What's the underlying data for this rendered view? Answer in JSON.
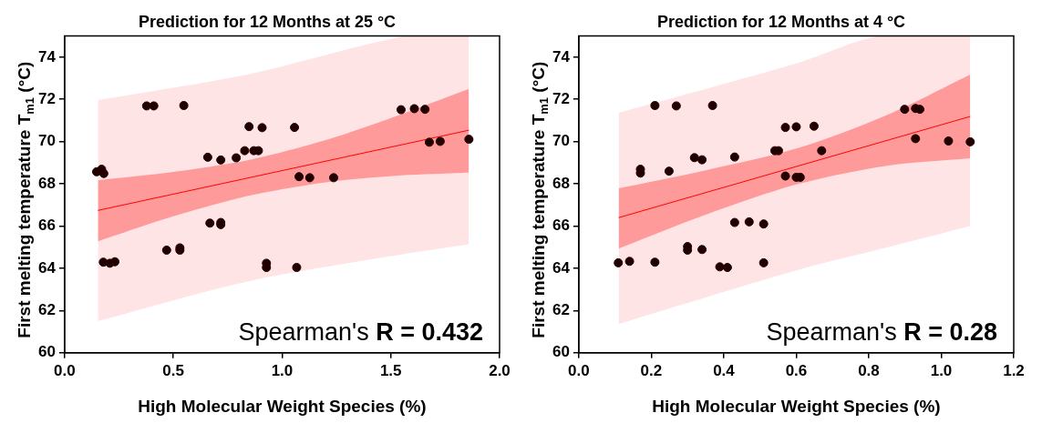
{
  "chart_data": [
    {
      "type": "scatter",
      "title": "Prediction for 12 Months at 25 °C",
      "xlabel": "High Molecular Weight Species (%)",
      "ylabel": "First melting temperature T$_{m1}$ (°C)",
      "xlim": [
        0,
        2
      ],
      "xticks": [
        {
          "value": 0,
          "label": "0.0"
        },
        {
          "value": 0.5,
          "label": "0.5"
        },
        {
          "value": 1,
          "label": "1.0"
        },
        {
          "value": 1.5,
          "label": "1.5"
        },
        {
          "value": 2,
          "label": "2.0"
        }
      ],
      "ylim": [
        60,
        75
      ],
      "yticks": [
        60,
        62,
        64,
        66,
        68,
        70,
        72,
        74
      ],
      "annotations": [
        "Spearman's R = 0.432"
      ],
      "series": [
        {
          "type": "scatter",
          "marker": "circle",
          "color": "#220000",
          "x": [
            0.147,
            0.17,
            0.18,
            0.178,
            0.208,
            0.231,
            0.377,
            0.41,
            0.548,
            0.469,
            0.53,
            0.53,
            0.658,
            0.668,
            0.718,
            0.718,
            0.718,
            0.789,
            0.828,
            0.848,
            0.87,
            0.891,
            0.908,
            0.928,
            0.928,
            1.057,
            1.067,
            1.078,
            1.127,
            1.237,
            1.547,
            1.608,
            1.657,
            1.677,
            1.727,
            1.859
          ],
          "values": [
            68.57,
            68.69,
            68.49,
            64.29,
            64.24,
            64.31,
            71.69,
            71.69,
            71.71,
            64.86,
            64.97,
            64.86,
            69.26,
            66.14,
            69.13,
            66.17,
            66.07,
            69.23,
            69.57,
            70.71,
            69.57,
            69.57,
            70.66,
            64.24,
            64.04,
            70.67,
            64.04,
            68.34,
            68.29,
            68.29,
            71.51,
            71.56,
            71.53,
            69.97,
            70.01,
            70.11
          ]
        },
        {
          "type": "line",
          "marker": "none",
          "color": "#ff0000",
          "x": [
            0.153,
            1.859
          ],
          "values": [
            66.74,
            70.54
          ]
        },
        {
          "type": "area",
          "color": "#ff9a9a",
          "x": [
            0.153,
            0.5,
            0.85,
            1.2,
            1.55,
            1.859
          ],
          "values": [
            null,
            null,
            null,
            null,
            null,
            null
          ],
          "lower": [
            65.28,
            66.46,
            67.44,
            68.07,
            68.4,
            68.53
          ],
          "upper": [
            68.17,
            68.56,
            69.14,
            70.07,
            71.3,
            72.5
          ]
        },
        {
          "type": "area",
          "color": "#ffe4e6",
          "x": [
            0.153,
            0.85,
            1.574,
            1.859
          ],
          "values": [
            null,
            null,
            null,
            null
          ],
          "lower": [
            61.5,
            63.4,
            64.7,
            65.14
          ],
          "upper": [
            71.97,
            73.2,
            75,
            75
          ]
        }
      ]
    },
    {
      "type": "scatter",
      "title": "Prediction for 12 Months at 4 °C",
      "xlabel": "High Molecular Weight Species (%)",
      "ylabel": "First melting temperature T$_{m1}$ (°C)",
      "xlim": [
        0,
        1.2
      ],
      "xticks": [
        {
          "value": 0,
          "label": "0.0"
        },
        {
          "value": 0.2,
          "label": "0.2"
        },
        {
          "value": 0.4,
          "label": "0.4"
        },
        {
          "value": 0.6,
          "label": "0.6"
        },
        {
          "value": 0.8,
          "label": "0.8"
        },
        {
          "value": 1,
          "label": "1.0"
        },
        {
          "value": 1.2,
          "label": "1.2"
        }
      ],
      "ylim": [
        60,
        75
      ],
      "yticks": [
        60,
        62,
        64,
        66,
        68,
        70,
        72,
        74
      ],
      "annotations": [
        "Spearman's R = 0.28"
      ],
      "series": [
        {
          "type": "scatter",
          "marker": "circle",
          "color": "#220000",
          "x": [
            0.109,
            0.14,
            0.17,
            0.17,
            0.21,
            0.21,
            0.249,
            0.269,
            0.3,
            0.3,
            0.319,
            0.34,
            0.34,
            0.369,
            0.389,
            0.41,
            0.43,
            0.43,
            0.47,
            0.51,
            0.51,
            0.541,
            0.551,
            0.57,
            0.57,
            0.6,
            0.6,
            0.611,
            0.649,
            0.67,
            0.899,
            0.929,
            0.941,
            0.929,
            1.02,
            1.08
          ],
          "values": [
            64.26,
            64.33,
            68.69,
            68.51,
            71.71,
            64.29,
            68.6,
            71.69,
            65.03,
            64.86,
            69.24,
            69.14,
            64.89,
            71.71,
            64.07,
            64.04,
            69.27,
            66.17,
            66.2,
            66.1,
            64.26,
            69.57,
            69.57,
            70.67,
            68.37,
            70.7,
            68.31,
            68.31,
            70.73,
            69.57,
            71.53,
            71.57,
            71.53,
            70.14,
            70.03,
            69.99
          ]
        },
        {
          "type": "line",
          "marker": "none",
          "color": "#ff0000",
          "x": [
            0.11,
            1.08
          ],
          "values": [
            66.4,
            71.19
          ]
        },
        {
          "type": "area",
          "color": "#ff9a9a",
          "x": [
            0.11,
            0.35,
            0.6,
            0.85,
            1.08
          ],
          "values": [
            null,
            null,
            null,
            null,
            null
          ],
          "lower": [
            64.93,
            66.54,
            67.97,
            68.86,
            69.21
          ],
          "upper": [
            67.79,
            68.64,
            69.67,
            71.26,
            73.17
          ]
        },
        {
          "type": "area",
          "color": "#ffe4e6",
          "x": [
            0.11,
            0.6,
            0.83,
            1.08
          ],
          "values": [
            null,
            null,
            null,
            null
          ],
          "lower": [
            61.36,
            63.9,
            64.9,
            66.0
          ],
          "upper": [
            71.36,
            73.7,
            75,
            75
          ]
        }
      ]
    }
  ]
}
